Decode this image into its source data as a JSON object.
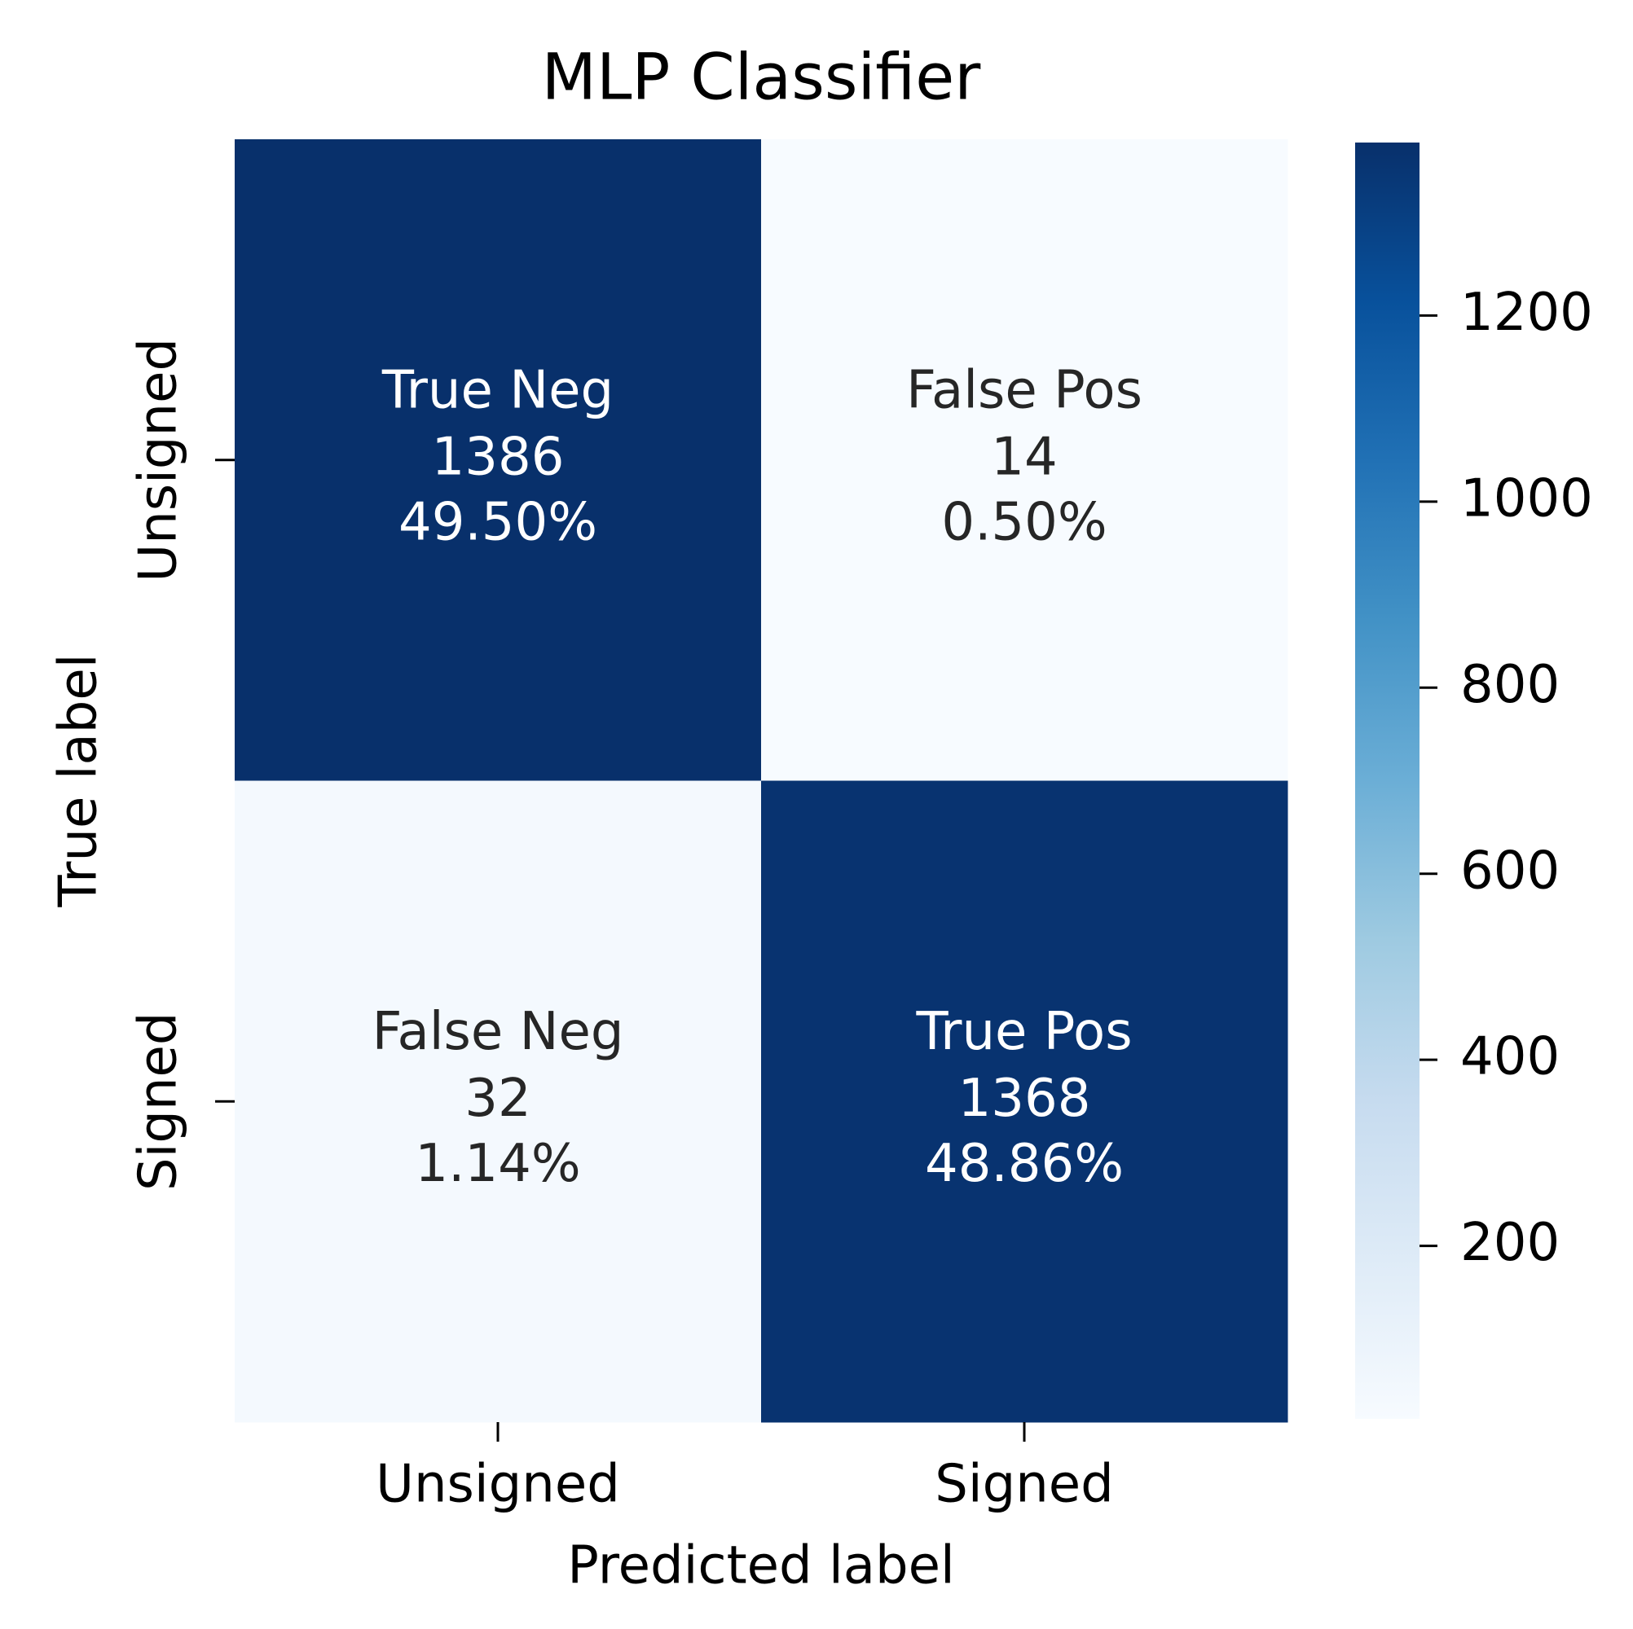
{
  "chart_data": {
    "type": "heatmap",
    "title": "MLP Classifier",
    "xlabel": "Predicted label",
    "ylabel": "True label",
    "x_categories": [
      "Unsigned",
      "Signed"
    ],
    "y_categories": [
      "Unsigned",
      "Signed"
    ],
    "values": [
      [
        1386,
        14
      ],
      [
        32,
        1368
      ]
    ],
    "group_names": [
      [
        "True Neg",
        "False Pos"
      ],
      [
        "False Neg",
        "True Pos"
      ]
    ],
    "percent_labels": [
      [
        "49.50%",
        "0.50%"
      ],
      [
        "1.14%",
        "48.86%"
      ]
    ],
    "colormap": [
      "#f7fbff",
      "#deebf7",
      "#c6dbef",
      "#9ecae1",
      "#6baed6",
      "#4292c6",
      "#2171b5",
      "#08519c",
      "#08306b"
    ],
    "clim": [
      14,
      1386
    ],
    "cticks": [
      200,
      400,
      600,
      800,
      1000,
      1200
    ]
  }
}
